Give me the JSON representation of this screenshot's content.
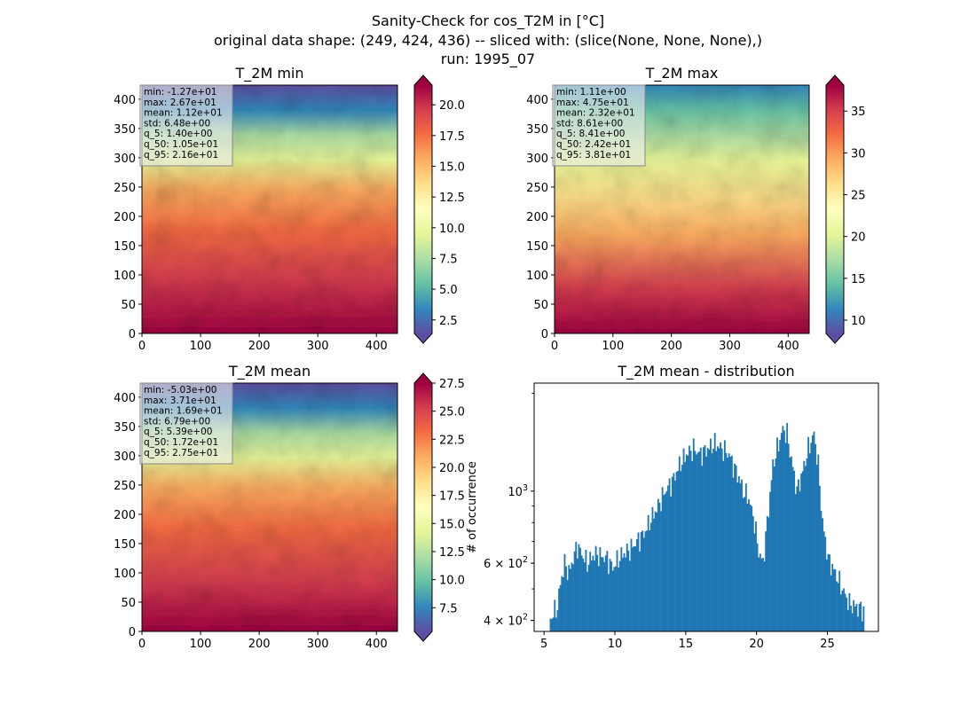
{
  "figure": {
    "title_lines": [
      "Sanity-Check for cos_T2M in [°C]",
      "original data shape: (249, 424, 436) -- sliced with: (slice(None, None, None),)",
      "run: 1995_07"
    ]
  },
  "chart_data": [
    {
      "type": "heatmap",
      "title": "T_2M min",
      "x_range": [
        0,
        436
      ],
      "y_range": [
        0,
        424
      ],
      "x_ticks": [
        "0",
        "100",
        "200",
        "300",
        "400"
      ],
      "y_ticks": [
        "0",
        "50",
        "100",
        "150",
        "200",
        "250",
        "300",
        "350",
        "400"
      ],
      "colormap": "Spectral_r",
      "colorbar": {
        "range": [
          1.4,
          21.6
        ],
        "ticks": [
          "2.5",
          "5.0",
          "7.5",
          "10.0",
          "12.5",
          "15.0",
          "17.5",
          "20.0"
        ]
      },
      "stats": [
        "min: -1.27e+01",
        "max: 2.67e+01",
        "mean: 1.12e+01",
        "std: 6.48e+00",
        "q_5: 1.40e+00",
        "q_50: 1.05e+01",
        "q_95: 2.16e+01"
      ]
    },
    {
      "type": "heatmap",
      "title": "T_2M max",
      "x_range": [
        0,
        436
      ],
      "y_range": [
        0,
        424
      ],
      "x_ticks": [
        "0",
        "100",
        "200",
        "300",
        "400"
      ],
      "y_ticks": [
        "0",
        "50",
        "100",
        "150",
        "200",
        "250",
        "300",
        "350",
        "400"
      ],
      "colormap": "Spectral_r",
      "colorbar": {
        "range": [
          8.41,
          38.1
        ],
        "ticks": [
          "10",
          "15",
          "20",
          "25",
          "30",
          "35"
        ]
      },
      "stats": [
        "min: 1.11e+00",
        "max: 4.75e+01",
        "mean: 2.32e+01",
        "std: 8.61e+00",
        "q_5: 8.41e+00",
        "q_50: 2.42e+01",
        "q_95: 3.81e+01"
      ]
    },
    {
      "type": "heatmap",
      "title": "T_2M mean",
      "x_range": [
        0,
        436
      ],
      "y_range": [
        0,
        424
      ],
      "x_ticks": [
        "0",
        "100",
        "200",
        "300",
        "400"
      ],
      "y_ticks": [
        "0",
        "50",
        "100",
        "150",
        "200",
        "250",
        "300",
        "350",
        "400"
      ],
      "colormap": "Spectral_r",
      "colorbar": {
        "range": [
          5.39,
          27.5
        ],
        "ticks": [
          "7.5",
          "10.0",
          "12.5",
          "15.0",
          "17.5",
          "20.0",
          "22.5",
          "25.0",
          "27.5"
        ]
      },
      "stats": [
        "min: -5.03e+00",
        "max: 3.71e+01",
        "mean: 1.69e+01",
        "std: 6.79e+00",
        "q_5: 5.39e+00",
        "q_50: 1.72e+01",
        "q_95: 2.75e+01"
      ]
    },
    {
      "type": "bar",
      "title": "T_2M mean - distribution",
      "ylabel": "# of occurrence",
      "y_scale": "log",
      "x_range": [
        4.3,
        28.6
      ],
      "y_range": [
        370,
        2150
      ],
      "x_ticks": [
        "5",
        "10",
        "15",
        "20",
        "25"
      ],
      "y_ticks": [
        {
          "value": 400,
          "mantissa": "4",
          "exp": "2"
        },
        {
          "value": 600,
          "mantissa": "6",
          "exp": "2"
        },
        {
          "value": 1000,
          "mantissa": "",
          "exp": "3"
        }
      ],
      "bar_color": "#1f77b4",
      "bin_width": 0.1,
      "profile": [
        [
          5.4,
          405
        ],
        [
          5.6,
          420
        ],
        [
          5.9,
          440
        ],
        [
          6.1,
          520
        ],
        [
          6.4,
          600
        ],
        [
          6.7,
          560
        ],
        [
          7.0,
          620
        ],
        [
          7.3,
          680
        ],
        [
          7.6,
          640
        ],
        [
          8.0,
          600
        ],
        [
          8.5,
          640
        ],
        [
          9.0,
          630
        ],
        [
          9.4,
          620
        ],
        [
          9.8,
          580
        ],
        [
          10.1,
          610
        ],
        [
          10.5,
          640
        ],
        [
          11.0,
          660
        ],
        [
          11.5,
          700
        ],
        [
          12.0,
          740
        ],
        [
          12.5,
          820
        ],
        [
          13.0,
          900
        ],
        [
          13.5,
          1000
        ],
        [
          14.0,
          1070
        ],
        [
          14.5,
          1200
        ],
        [
          15.0,
          1300
        ],
        [
          15.5,
          1350
        ],
        [
          16.0,
          1300
        ],
        [
          16.5,
          1350
        ],
        [
          17.0,
          1400
        ],
        [
          17.5,
          1350
        ],
        [
          18.0,
          1300
        ],
        [
          18.3,
          1200
        ],
        [
          18.7,
          1100
        ],
        [
          19.0,
          1000
        ],
        [
          19.4,
          950
        ],
        [
          19.8,
          800
        ],
        [
          20.1,
          650
        ],
        [
          20.4,
          600
        ],
        [
          20.7,
          800
        ],
        [
          21.1,
          1200
        ],
        [
          21.5,
          1400
        ],
        [
          21.8,
          1550
        ],
        [
          22.1,
          1500
        ],
        [
          22.4,
          1250
        ],
        [
          22.8,
          1000
        ],
        [
          23.2,
          1150
        ],
        [
          23.6,
          1350
        ],
        [
          24.0,
          1500
        ],
        [
          24.3,
          1200
        ],
        [
          24.6,
          800
        ],
        [
          25.0,
          620
        ],
        [
          25.5,
          560
        ],
        [
          26.0,
          500
        ],
        [
          26.5,
          450
        ],
        [
          27.0,
          440
        ],
        [
          27.5,
          430
        ]
      ]
    }
  ]
}
